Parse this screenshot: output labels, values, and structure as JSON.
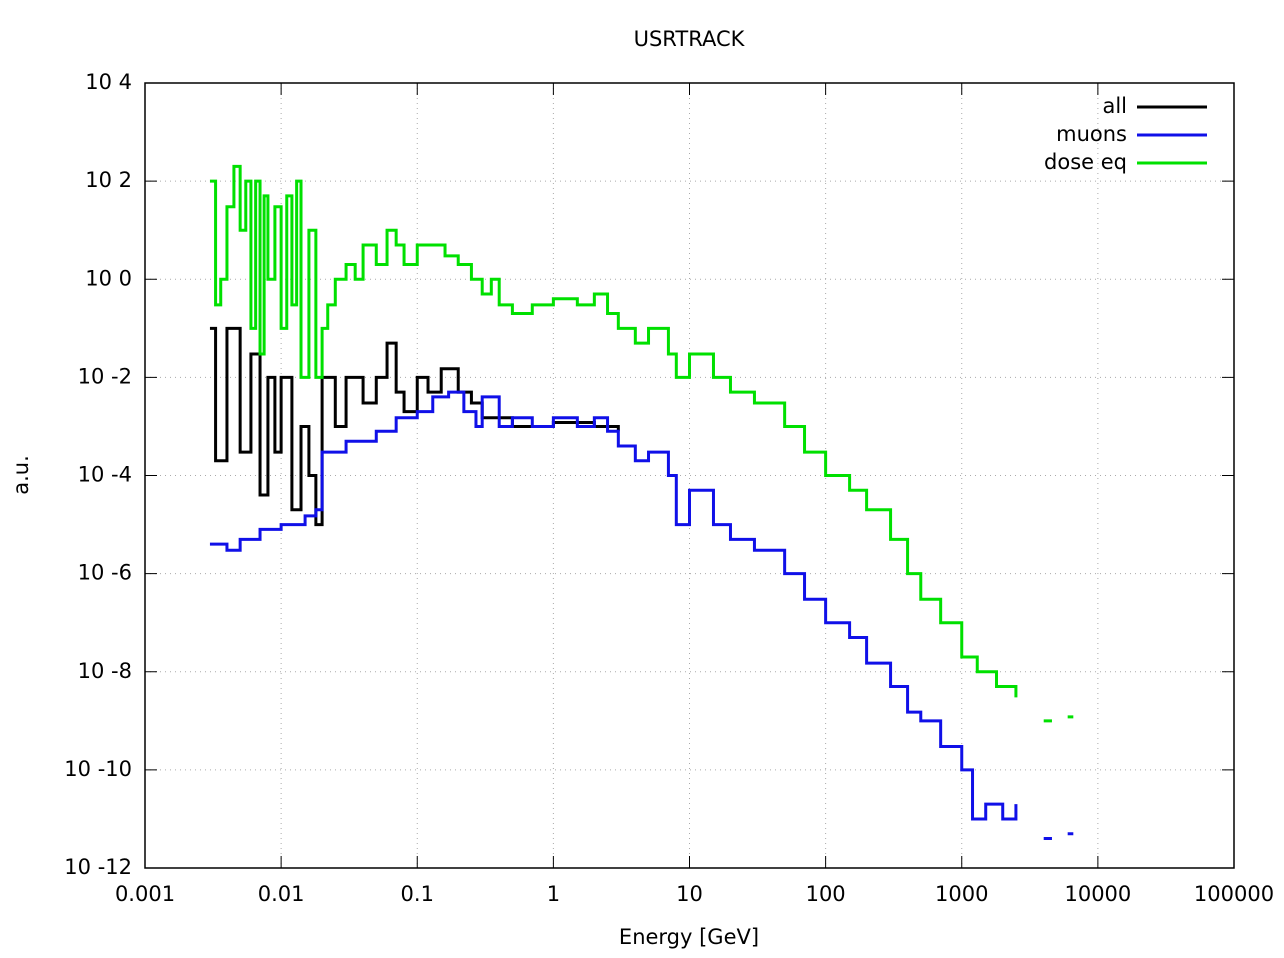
{
  "chart_data": {
    "type": "step",
    "title": "USRTRACK",
    "x_label": "Energy [GeV]",
    "y_label": "a.u.",
    "xlog": true,
    "ylog": true,
    "grid": true,
    "legend": "top-right",
    "xlim": [
      0.001,
      100000
    ],
    "xticks": [
      0.001,
      0.01,
      0.1,
      1,
      10,
      100,
      1000,
      10000,
      100000
    ],
    "ylim": [
      1e-12,
      10000
    ],
    "yticks": [
      {
        "value": 10000,
        "label": "10 4"
      },
      {
        "value": 100,
        "label": "10 2"
      },
      {
        "value": 1,
        "label": "10 0"
      },
      {
        "value": 0.01,
        "label": "10 -2"
      },
      {
        "value": 0.0001,
        "label": "10 -4"
      },
      {
        "value": 1e-06,
        "label": "10 -6"
      },
      {
        "value": 1e-08,
        "label": "10 -8"
      },
      {
        "value": 1e-10,
        "label": "10 -10"
      },
      {
        "value": 1e-12,
        "label": "10 -12"
      }
    ],
    "series": [
      {
        "name": "all",
        "color": "#000000",
        "x": [
          0.003,
          0.0033,
          0.004,
          0.005,
          0.006,
          0.007,
          0.008,
          0.009,
          0.01,
          0.012,
          0.014,
          0.016,
          0.018,
          0.02,
          0.025,
          0.03,
          0.04,
          0.05,
          0.06,
          0.07,
          0.08,
          0.1,
          0.12,
          0.15,
          0.2,
          0.25,
          0.3,
          0.5,
          1,
          2,
          3
        ],
        "values": [
          0.1,
          0.0002,
          0.1,
          0.0003,
          0.03,
          4e-05,
          0.01,
          0.0003,
          0.01,
          2e-05,
          0.001,
          0.0001,
          1e-05,
          0.01,
          0.001,
          0.01,
          0.003,
          0.01,
          0.05,
          0.005,
          0.002,
          0.01,
          0.005,
          0.015,
          0.005,
          0.003,
          0.0015,
          0.001,
          0.0012,
          0.001,
          0.0008
        ]
      },
      {
        "name": "muons",
        "color": "#1010e8",
        "x": [
          0.003,
          0.004,
          0.005,
          0.007,
          0.01,
          0.015,
          0.018,
          0.02,
          0.03,
          0.05,
          0.07,
          0.1,
          0.13,
          0.17,
          0.22,
          0.27,
          0.3,
          0.4,
          0.5,
          0.7,
          1,
          1.5,
          2,
          2.5,
          3,
          4,
          5,
          7,
          8,
          10,
          15,
          20,
          30,
          50,
          70,
          100,
          150,
          200,
          300,
          400,
          500,
          700,
          1000,
          1200,
          1500,
          2000,
          2500,
          2600,
          4000,
          4600,
          5000,
          6000,
          6600
        ],
        "values": [
          4e-06,
          3e-06,
          5e-06,
          8e-06,
          1e-05,
          1.5e-05,
          2e-05,
          0.0003,
          0.0005,
          0.0008,
          0.0015,
          0.002,
          0.004,
          0.005,
          0.002,
          0.001,
          0.004,
          0.001,
          0.0015,
          0.001,
          0.0015,
          0.001,
          0.0015,
          0.0008,
          0.0004,
          0.0002,
          0.0003,
          0.0001,
          1e-05,
          5e-05,
          1e-05,
          5e-06,
          3e-06,
          1e-06,
          3e-07,
          1e-07,
          5e-08,
          1.5e-08,
          5e-09,
          1.5e-09,
          1e-09,
          3e-10,
          1e-10,
          1e-11,
          2e-11,
          1e-11,
          2e-11,
          null,
          4e-12,
          4e-12,
          null,
          5e-12,
          5e-12
        ]
      },
      {
        "name": "dose eq",
        "color": "#00e000",
        "x": [
          0.003,
          0.0033,
          0.0036,
          0.004,
          0.0045,
          0.005,
          0.0055,
          0.006,
          0.0065,
          0.007,
          0.0075,
          0.008,
          0.009,
          0.01,
          0.011,
          0.012,
          0.013,
          0.014,
          0.016,
          0.018,
          0.02,
          0.022,
          0.025,
          0.03,
          0.035,
          0.04,
          0.05,
          0.06,
          0.07,
          0.08,
          0.1,
          0.13,
          0.16,
          0.2,
          0.25,
          0.3,
          0.35,
          0.4,
          0.5,
          0.7,
          1,
          1.5,
          2,
          2.5,
          3,
          4,
          5,
          7,
          8,
          10,
          15,
          20,
          30,
          50,
          70,
          100,
          150,
          200,
          300,
          400,
          500,
          700,
          1000,
          1300,
          1800,
          2500,
          2600,
          4000,
          4600,
          5000,
          6000,
          6600
        ],
        "values": [
          100,
          0.3,
          1,
          30,
          200,
          10,
          100,
          0.1,
          100,
          0.03,
          50,
          1,
          30,
          0.1,
          50,
          0.3,
          100,
          0.01,
          10,
          0.01,
          0.1,
          0.3,
          1,
          2,
          1,
          5,
          2,
          10,
          5,
          2,
          5,
          5,
          3,
          2,
          1,
          0.5,
          1,
          0.3,
          0.2,
          0.3,
          0.4,
          0.3,
          0.5,
          0.2,
          0.1,
          0.05,
          0.1,
          0.03,
          0.01,
          0.03,
          0.01,
          0.005,
          0.003,
          0.001,
          0.0003,
          0.0001,
          5e-05,
          2e-05,
          5e-06,
          1e-06,
          3e-07,
          1e-07,
          2e-08,
          1e-08,
          5e-09,
          3e-09,
          null,
          1e-09,
          1e-09,
          null,
          1.2e-09,
          1.2e-09
        ]
      }
    ]
  }
}
